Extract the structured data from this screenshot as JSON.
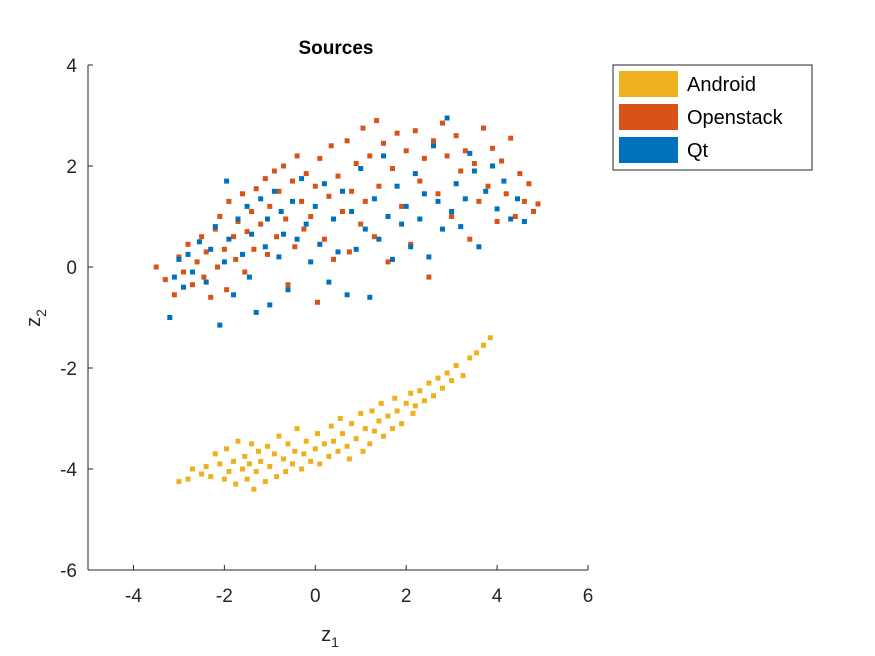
{
  "chart_data": {
    "type": "scatter",
    "title": "Sources",
    "xlabel": {
      "base": "z",
      "sub": "1"
    },
    "ylabel": {
      "base": "z",
      "sub": "2"
    },
    "xlim": [
      -5,
      6
    ],
    "ylim": [
      -6,
      4
    ],
    "xticks": [
      "-4",
      "-2",
      "0",
      "2",
      "4",
      "6"
    ],
    "yticks": [
      "4",
      "2",
      "0",
      "-2",
      "-4",
      "-6"
    ],
    "grid": false,
    "legend_position": "outside top-right",
    "marker": "square",
    "series": [
      {
        "name": "Android",
        "color": "#EDB120",
        "points": [
          [
            -3.0,
            -4.25
          ],
          [
            -2.8,
            -4.2
          ],
          [
            -2.7,
            -4.0
          ],
          [
            -2.5,
            -4.1
          ],
          [
            -2.4,
            -3.95
          ],
          [
            -2.3,
            -4.15
          ],
          [
            -2.2,
            -3.7
          ],
          [
            -2.1,
            -3.9
          ],
          [
            -2.0,
            -4.2
          ],
          [
            -1.95,
            -3.6
          ],
          [
            -1.9,
            -4.05
          ],
          [
            -1.8,
            -3.85
          ],
          [
            -1.75,
            -4.3
          ],
          [
            -1.7,
            -3.45
          ],
          [
            -1.6,
            -4.0
          ],
          [
            -1.55,
            -3.75
          ],
          [
            -1.5,
            -4.2
          ],
          [
            -1.45,
            -3.9
          ],
          [
            -1.4,
            -3.5
          ],
          [
            -1.35,
            -4.4
          ],
          [
            -1.3,
            -4.05
          ],
          [
            -1.25,
            -3.65
          ],
          [
            -1.2,
            -3.85
          ],
          [
            -1.1,
            -4.25
          ],
          [
            -1.05,
            -3.55
          ],
          [
            -1.0,
            -3.95
          ],
          [
            -0.9,
            -3.7
          ],
          [
            -0.85,
            -4.15
          ],
          [
            -0.8,
            -3.35
          ],
          [
            -0.7,
            -3.8
          ],
          [
            -0.65,
            -4.05
          ],
          [
            -0.6,
            -3.5
          ],
          [
            -0.5,
            -3.9
          ],
          [
            -0.45,
            -3.65
          ],
          [
            -0.4,
            -3.2
          ],
          [
            -0.3,
            -4.0
          ],
          [
            -0.25,
            -3.7
          ],
          [
            -0.2,
            -3.45
          ],
          [
            -0.1,
            -3.85
          ],
          [
            0.0,
            -3.6
          ],
          [
            0.05,
            -3.3
          ],
          [
            0.1,
            -3.9
          ],
          [
            0.2,
            -3.5
          ],
          [
            0.3,
            -3.75
          ],
          [
            0.35,
            -3.15
          ],
          [
            0.4,
            -3.45
          ],
          [
            0.5,
            -3.65
          ],
          [
            0.55,
            -3.0
          ],
          [
            0.6,
            -3.3
          ],
          [
            0.7,
            -3.55
          ],
          [
            0.75,
            -3.8
          ],
          [
            0.8,
            -3.1
          ],
          [
            0.9,
            -3.4
          ],
          [
            1.0,
            -2.9
          ],
          [
            1.05,
            -3.65
          ],
          [
            1.1,
            -3.2
          ],
          [
            1.2,
            -3.5
          ],
          [
            1.25,
            -2.85
          ],
          [
            1.3,
            -3.25
          ],
          [
            1.4,
            -3.05
          ],
          [
            1.45,
            -2.7
          ],
          [
            1.5,
            -3.35
          ],
          [
            1.6,
            -2.95
          ],
          [
            1.7,
            -3.2
          ],
          [
            1.75,
            -2.6
          ],
          [
            1.8,
            -2.85
          ],
          [
            1.9,
            -3.1
          ],
          [
            2.0,
            -2.7
          ],
          [
            2.1,
            -2.5
          ],
          [
            2.15,
            -2.9
          ],
          [
            2.2,
            -2.75
          ],
          [
            2.3,
            -2.45
          ],
          [
            2.4,
            -2.65
          ],
          [
            2.5,
            -2.3
          ],
          [
            2.6,
            -2.55
          ],
          [
            2.7,
            -2.2
          ],
          [
            2.8,
            -2.4
          ],
          [
            2.9,
            -2.1
          ],
          [
            3.0,
            -2.25
          ],
          [
            3.1,
            -1.95
          ],
          [
            3.25,
            -2.15
          ],
          [
            3.4,
            -1.8
          ],
          [
            3.55,
            -1.7
          ],
          [
            3.7,
            -1.55
          ],
          [
            3.85,
            -1.4
          ]
        ]
      },
      {
        "name": "Openstack",
        "color": "#D95319",
        "points": [
          [
            -3.5,
            0.0
          ],
          [
            -3.3,
            -0.25
          ],
          [
            -3.1,
            -0.55
          ],
          [
            -3.0,
            0.2
          ],
          [
            -2.9,
            -0.1
          ],
          [
            -2.8,
            0.45
          ],
          [
            -2.7,
            -0.35
          ],
          [
            -2.6,
            0.1
          ],
          [
            -2.5,
            0.6
          ],
          [
            -2.45,
            -0.2
          ],
          [
            -2.4,
            0.3
          ],
          [
            -2.3,
            -0.6
          ],
          [
            -2.2,
            0.75
          ],
          [
            -2.15,
            0.0
          ],
          [
            -2.1,
            1.0
          ],
          [
            -2.0,
            0.35
          ],
          [
            -1.95,
            -0.45
          ],
          [
            -1.9,
            1.3
          ],
          [
            -1.8,
            0.6
          ],
          [
            -1.75,
            0.15
          ],
          [
            -1.7,
            0.9
          ],
          [
            -1.6,
            1.45
          ],
          [
            -1.55,
            -0.1
          ],
          [
            -1.5,
            0.7
          ],
          [
            -1.4,
            1.1
          ],
          [
            -1.35,
            0.35
          ],
          [
            -1.3,
            1.55
          ],
          [
            -1.2,
            0.85
          ],
          [
            -1.1,
            1.75
          ],
          [
            -1.05,
            0.25
          ],
          [
            -1.0,
            1.2
          ],
          [
            -0.9,
            1.9
          ],
          [
            -0.85,
            0.6
          ],
          [
            -0.8,
            1.5
          ],
          [
            -0.7,
            2.0
          ],
          [
            -0.65,
            0.95
          ],
          [
            -0.6,
            -0.35
          ],
          [
            -0.5,
            1.7
          ],
          [
            -0.45,
            0.4
          ],
          [
            -0.4,
            2.2
          ],
          [
            -0.3,
            1.3
          ],
          [
            -0.25,
            0.75
          ],
          [
            -0.2,
            1.85
          ],
          [
            -0.1,
            1.0
          ],
          [
            0.0,
            1.6
          ],
          [
            0.05,
            -0.7
          ],
          [
            0.1,
            2.15
          ],
          [
            0.2,
            0.55
          ],
          [
            0.3,
            1.4
          ],
          [
            0.35,
            2.4
          ],
          [
            0.4,
            0.15
          ],
          [
            0.5,
            1.8
          ],
          [
            0.6,
            1.1
          ],
          [
            0.7,
            2.5
          ],
          [
            0.75,
            0.3
          ],
          [
            0.8,
            1.5
          ],
          [
            0.9,
            2.05
          ],
          [
            1.0,
            0.85
          ],
          [
            1.05,
            2.75
          ],
          [
            1.1,
            1.3
          ],
          [
            1.2,
            2.2
          ],
          [
            1.3,
            0.6
          ],
          [
            1.35,
            2.9
          ],
          [
            1.4,
            1.6
          ],
          [
            1.5,
            2.45
          ],
          [
            1.6,
            0.1
          ],
          [
            1.7,
            1.95
          ],
          [
            1.8,
            2.65
          ],
          [
            1.9,
            1.2
          ],
          [
            2.0,
            2.3
          ],
          [
            2.1,
            0.45
          ],
          [
            2.2,
            2.7
          ],
          [
            2.3,
            1.7
          ],
          [
            2.4,
            2.15
          ],
          [
            2.5,
            -0.2
          ],
          [
            2.6,
            2.5
          ],
          [
            2.7,
            1.45
          ],
          [
            2.8,
            2.85
          ],
          [
            2.9,
            2.2
          ],
          [
            3.0,
            1.0
          ],
          [
            3.1,
            2.6
          ],
          [
            3.2,
            1.9
          ],
          [
            3.3,
            2.3
          ],
          [
            3.4,
            0.55
          ],
          [
            3.5,
            2.05
          ],
          [
            3.6,
            1.3
          ],
          [
            3.7,
            2.75
          ],
          [
            3.8,
            1.6
          ],
          [
            3.9,
            2.35
          ],
          [
            4.0,
            0.9
          ],
          [
            4.1,
            2.1
          ],
          [
            4.2,
            1.45
          ],
          [
            4.3,
            2.55
          ],
          [
            4.4,
            1.0
          ],
          [
            4.5,
            1.85
          ],
          [
            4.6,
            1.3
          ],
          [
            4.7,
            1.65
          ],
          [
            4.8,
            1.1
          ],
          [
            4.9,
            1.25
          ]
        ]
      },
      {
        "name": "Qt",
        "color": "#0072BD",
        "points": [
          [
            -3.2,
            -1.0
          ],
          [
            -3.1,
            -0.2
          ],
          [
            -3.0,
            0.15
          ],
          [
            -2.9,
            -0.4
          ],
          [
            -2.8,
            0.25
          ],
          [
            -2.7,
            -0.1
          ],
          [
            -2.55,
            0.5
          ],
          [
            -2.4,
            -0.3
          ],
          [
            -2.3,
            0.35
          ],
          [
            -2.2,
            0.8
          ],
          [
            -2.1,
            -1.15
          ],
          [
            -2.0,
            0.1
          ],
          [
            -1.95,
            1.7
          ],
          [
            -1.9,
            0.55
          ],
          [
            -1.8,
            -0.55
          ],
          [
            -1.7,
            0.95
          ],
          [
            -1.6,
            0.25
          ],
          [
            -1.5,
            1.2
          ],
          [
            -1.45,
            -0.2
          ],
          [
            -1.4,
            0.65
          ],
          [
            -1.3,
            -0.9
          ],
          [
            -1.2,
            1.35
          ],
          [
            -1.1,
            0.4
          ],
          [
            -1.05,
            0.95
          ],
          [
            -1.0,
            -0.75
          ],
          [
            -0.9,
            1.5
          ],
          [
            -0.8,
            0.2
          ],
          [
            -0.75,
            1.1
          ],
          [
            -0.7,
            0.65
          ],
          [
            -0.6,
            -0.45
          ],
          [
            -0.5,
            1.3
          ],
          [
            -0.4,
            0.55
          ],
          [
            -0.3,
            1.75
          ],
          [
            -0.2,
            0.85
          ],
          [
            -0.1,
            0.1
          ],
          [
            0.0,
            1.2
          ],
          [
            0.1,
            0.45
          ],
          [
            0.2,
            1.65
          ],
          [
            0.3,
            -0.3
          ],
          [
            0.4,
            0.95
          ],
          [
            0.5,
            0.3
          ],
          [
            0.6,
            1.5
          ],
          [
            0.7,
            -0.55
          ],
          [
            0.8,
            1.1
          ],
          [
            0.9,
            0.35
          ],
          [
            1.0,
            1.95
          ],
          [
            1.1,
            0.75
          ],
          [
            1.2,
            -0.6
          ],
          [
            1.3,
            1.35
          ],
          [
            1.4,
            0.55
          ],
          [
            1.5,
            2.2
          ],
          [
            1.6,
            1.0
          ],
          [
            1.7,
            0.15
          ],
          [
            1.8,
            1.6
          ],
          [
            1.9,
            0.85
          ],
          [
            2.0,
            1.2
          ],
          [
            2.1,
            0.4
          ],
          [
            2.2,
            1.85
          ],
          [
            2.3,
            0.95
          ],
          [
            2.4,
            1.45
          ],
          [
            2.5,
            0.2
          ],
          [
            2.6,
            2.4
          ],
          [
            2.7,
            1.3
          ],
          [
            2.8,
            0.75
          ],
          [
            2.9,
            2.95
          ],
          [
            3.0,
            1.1
          ],
          [
            3.1,
            1.65
          ],
          [
            3.2,
            0.8
          ],
          [
            3.3,
            1.35
          ],
          [
            3.4,
            2.25
          ],
          [
            3.5,
            1.9
          ],
          [
            3.6,
            0.4
          ],
          [
            3.75,
            1.5
          ],
          [
            3.9,
            2.0
          ],
          [
            4.0,
            1.15
          ],
          [
            4.15,
            1.7
          ],
          [
            4.3,
            0.95
          ],
          [
            4.45,
            1.35
          ],
          [
            4.6,
            0.9
          ]
        ]
      }
    ]
  }
}
